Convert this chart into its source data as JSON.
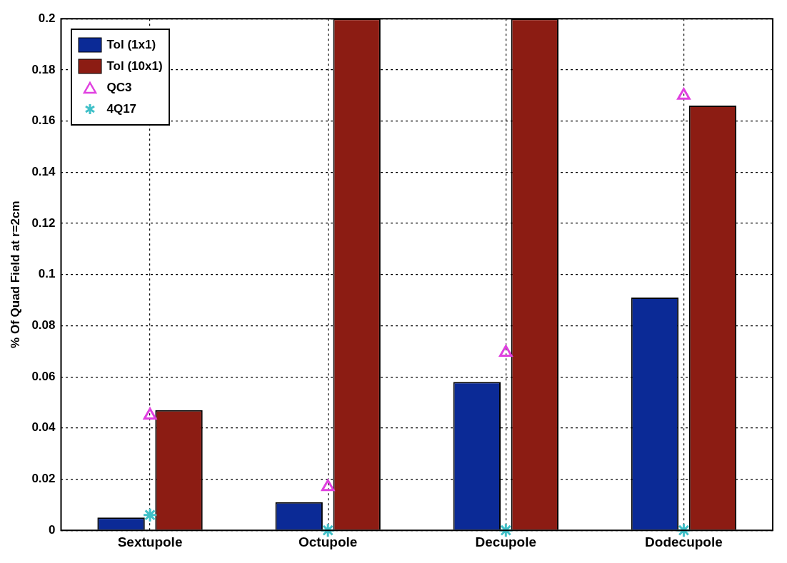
{
  "chart_data": {
    "type": "bar",
    "ylabel": "% Of Quad Field at r=2cm",
    "categories": [
      "Sextupole",
      "Octupole",
      "Decupole",
      "Dodecupole"
    ],
    "series": [
      {
        "name": "Tol (1x1)",
        "color": "#0b2a96",
        "values": [
          0.005,
          0.011,
          0.058,
          0.091
        ]
      },
      {
        "name": "Tol (10x1)",
        "color": "#8c1c13",
        "values": [
          0.047,
          0.2,
          0.2,
          0.166
        ]
      },
      {
        "name": "QC3",
        "color": "#e040e0",
        "type": "scatter",
        "marker": "triangle",
        "values": [
          0.045,
          0.017,
          0.0695,
          0.17
        ]
      },
      {
        "name": "4Q17",
        "color": "#40c0c8",
        "type": "scatter",
        "marker": "cross",
        "values": [
          0.006,
          0,
          0,
          0
        ]
      }
    ],
    "ylim": [
      0,
      0.2
    ],
    "yticks": [
      0,
      0.02,
      0.04,
      0.06,
      0.08,
      0.1,
      0.12,
      0.14,
      0.16,
      0.18,
      0.2
    ],
    "grid": true,
    "legend": "top left"
  }
}
